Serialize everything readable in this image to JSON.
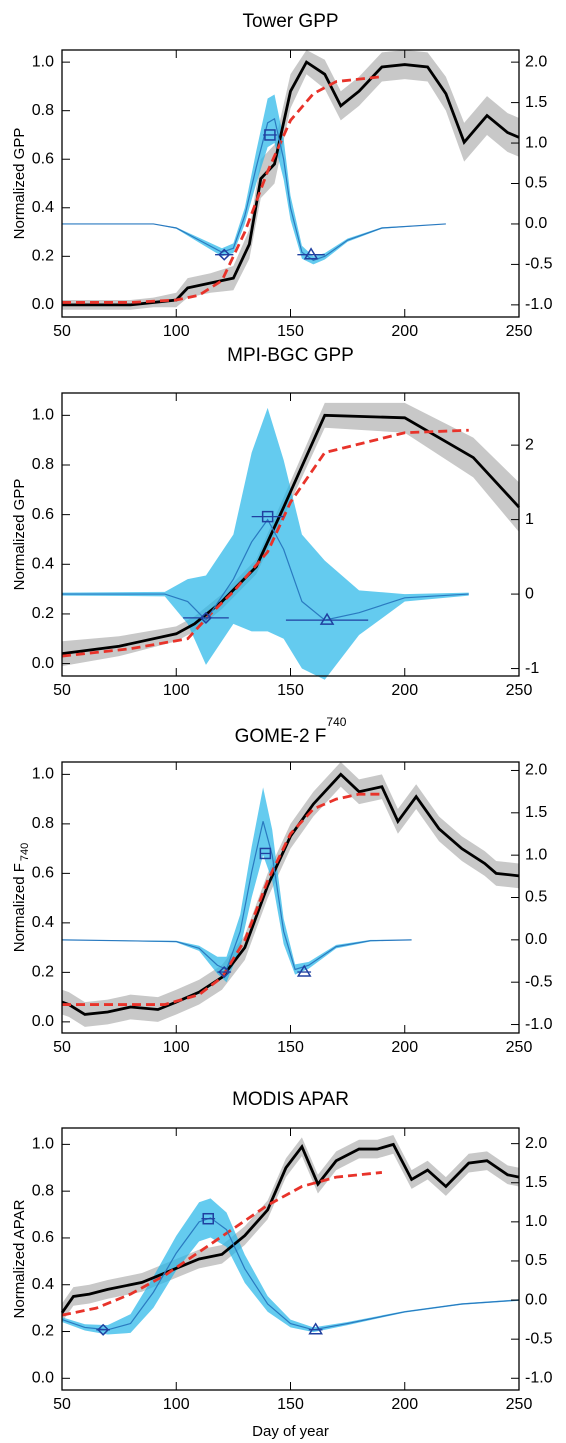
{
  "chart_data": [
    {
      "type": "line",
      "title": "Tower GPP",
      "ylabel": "Normalized GPP",
      "xlim": [
        50,
        250
      ],
      "xticks": [
        50,
        100,
        150,
        200,
        250
      ],
      "ylim": [
        -0.05,
        1.05
      ],
      "yticks": [
        {
          "value": 0,
          "label": "0.0"
        },
        0.2,
        0.4,
        0.6,
        0.8,
        {
          "value": 1,
          "label": "1.0"
        }
      ],
      "y2lim": [
        -1.15,
        2.15
      ],
      "y2ticks": [
        {
          "value": -1,
          "label": "-1.0"
        },
        -0.5,
        {
          "value": 0,
          "label": "0.0"
        },
        0.5,
        {
          "value": 1,
          "label": "1.0"
        },
        1.5,
        {
          "value": 2,
          "label": "2.0"
        }
      ],
      "series": [
        {
          "color": "#000000",
          "band_color": "#c8c8c8",
          "style": "solid",
          "x": [
            50,
            60,
            80,
            90,
            100,
            105,
            115,
            125,
            132,
            137,
            143,
            150,
            157,
            165,
            172,
            180,
            190,
            200,
            210,
            218,
            226,
            236,
            245,
            250
          ],
          "values": [
            0.0,
            0.0,
            0.0,
            0.01,
            0.02,
            0.07,
            0.09,
            0.11,
            0.25,
            0.52,
            0.58,
            0.88,
            1.0,
            0.95,
            0.82,
            0.88,
            0.98,
            0.99,
            0.98,
            0.87,
            0.67,
            0.78,
            0.71,
            0.69
          ],
          "errors": [
            0.02,
            0.02,
            0.02,
            0.02,
            0.03,
            0.04,
            0.04,
            0.05,
            0.06,
            0.08,
            0.08,
            0.07,
            0.05,
            0.06,
            0.06,
            0.06,
            0.06,
            0.06,
            0.06,
            0.07,
            0.08,
            0.08,
            0.08,
            0.08
          ]
        },
        {
          "color": "#e8332a",
          "style": "dashed",
          "x": [
            50,
            80,
            100,
            110,
            120,
            130,
            140,
            150,
            160,
            170,
            180,
            190
          ],
          "values": [
            0.01,
            0.01,
            0.02,
            0.04,
            0.1,
            0.3,
            0.55,
            0.76,
            0.87,
            0.92,
            0.93,
            0.94
          ]
        },
        {
          "color": "#2a7ac0",
          "band_color": "#22b5e8",
          "style": "thin",
          "axis": "y2",
          "x": [
            50,
            90,
            100,
            110,
            120,
            125,
            130,
            135,
            140,
            143,
            147,
            150,
            155,
            160,
            165,
            175,
            190,
            218
          ],
          "values": [
            0,
            0,
            -0.05,
            -0.2,
            -0.35,
            -0.3,
            0.1,
            0.7,
            1.25,
            1.3,
            0.8,
            0.2,
            -0.35,
            -0.45,
            -0.4,
            -0.2,
            -0.05,
            0
          ],
          "errors": [
            0,
            0,
            0.01,
            0.03,
            0.05,
            0.06,
            0.1,
            0.2,
            0.3,
            0.3,
            0.25,
            0.15,
            0.08,
            0.05,
            0.04,
            0.02,
            0.01,
            0
          ]
        }
      ],
      "markers": [
        {
          "shape": "diamond",
          "x": 121,
          "value": -0.38,
          "xerr": 4
        },
        {
          "shape": "square",
          "x": 141,
          "value": 1.1,
          "xerr": 3
        },
        {
          "shape": "triangle",
          "x": 159,
          "value": -0.38,
          "xerr": 6
        }
      ]
    },
    {
      "type": "line",
      "title": "MPI-BGC GPP",
      "ylabel": "Normalized GPP",
      "xlim": [
        50,
        250
      ],
      "xticks": [
        50,
        100,
        150,
        200,
        250
      ],
      "ylim": [
        -0.05,
        1.09
      ],
      "yticks": [
        {
          "value": 0,
          "label": "0.0"
        },
        0.2,
        0.4,
        0.6,
        0.8,
        {
          "value": 1,
          "label": "1.0"
        }
      ],
      "y2lim": [
        -1.1,
        2.7
      ],
      "y2ticks": [
        -1,
        0,
        1,
        2
      ],
      "series": [
        {
          "color": "#000000",
          "band_color": "#c8c8c8",
          "style": "solid",
          "x": [
            50,
            75,
            100,
            108,
            120,
            135,
            147,
            165,
            200,
            230,
            250
          ],
          "values": [
            0.04,
            0.07,
            0.12,
            0.16,
            0.25,
            0.39,
            0.63,
            1.0,
            0.99,
            0.83,
            0.63
          ],
          "errors": [
            0.05,
            0.04,
            0.03,
            0.03,
            0.03,
            0.03,
            0.04,
            0.05,
            0.06,
            0.08,
            0.1
          ]
        },
        {
          "color": "#e8332a",
          "style": "dashed",
          "x": [
            50,
            80,
            105,
            115,
            125,
            140,
            150,
            165,
            200,
            228
          ],
          "values": [
            0.03,
            0.06,
            0.1,
            0.2,
            0.29,
            0.45,
            0.65,
            0.85,
            0.93,
            0.94
          ]
        },
        {
          "color": "#2a7ac0",
          "band_color": "#22b5e8",
          "style": "thin",
          "axis": "y2",
          "x": [
            50,
            95,
            105,
            113,
            125,
            133,
            140,
            147,
            155,
            165,
            180,
            200,
            228
          ],
          "values": [
            0,
            0,
            -0.1,
            -0.35,
            0.2,
            0.7,
            1.0,
            0.6,
            -0.1,
            -0.35,
            -0.25,
            -0.05,
            0
          ],
          "errors": [
            0.02,
            0.03,
            0.3,
            0.6,
            0.6,
            1.2,
            1.5,
            1.2,
            0.9,
            0.8,
            0.3,
            0.05,
            0.02
          ]
        }
      ],
      "markers": [
        {
          "shape": "diamond",
          "x": 113,
          "value": -0.32,
          "xerr": 10
        },
        {
          "shape": "square",
          "x": 140,
          "value": 1.04,
          "xerr": 7
        },
        {
          "shape": "triangle",
          "x": 166,
          "value": -0.35,
          "xerr": 18
        }
      ]
    },
    {
      "type": "line",
      "title": "GOME-2 F",
      "title_subscript": "740",
      "ylabel": "Normalized F",
      "ylabel_subscript": "740",
      "xlim": [
        50,
        250
      ],
      "xticks": [
        50,
        100,
        150,
        200,
        250
      ],
      "ylim": [
        -0.045,
        1.05
      ],
      "yticks": [
        {
          "value": 0,
          "label": "0.0"
        },
        0.2,
        0.4,
        0.6,
        0.8,
        {
          "value": 1,
          "label": "1.0"
        }
      ],
      "y2lim": [
        -1.1,
        2.1
      ],
      "y2ticks": [
        {
          "value": -1,
          "label": "-1.0"
        },
        -0.5,
        {
          "value": 0,
          "label": "0.0"
        },
        0.5,
        {
          "value": 1,
          "label": "1.0"
        },
        1.5,
        {
          "value": 2,
          "label": "2.0"
        }
      ],
      "series": [
        {
          "color": "#000000",
          "band_color": "#c8c8c8",
          "style": "solid",
          "x": [
            50,
            53,
            60,
            70,
            80,
            92,
            100,
            110,
            120,
            130,
            140,
            150,
            160,
            172,
            180,
            190,
            197,
            205,
            215,
            225,
            235,
            240,
            250
          ],
          "values": [
            0.08,
            0.07,
            0.03,
            0.04,
            0.06,
            0.05,
            0.08,
            0.12,
            0.18,
            0.3,
            0.55,
            0.75,
            0.88,
            1.0,
            0.93,
            0.95,
            0.81,
            0.91,
            0.78,
            0.7,
            0.64,
            0.6,
            0.59
          ],
          "errors": [
            0.05,
            0.05,
            0.05,
            0.05,
            0.05,
            0.05,
            0.05,
            0.05,
            0.05,
            0.05,
            0.05,
            0.05,
            0.05,
            0.05,
            0.05,
            0.05,
            0.05,
            0.05,
            0.05,
            0.05,
            0.05,
            0.05,
            0.05
          ]
        },
        {
          "color": "#e8332a",
          "style": "dashed",
          "x": [
            50,
            60,
            80,
            95,
            110,
            120,
            130,
            140,
            150,
            160,
            170,
            180,
            190
          ],
          "values": [
            0.07,
            0.07,
            0.07,
            0.07,
            0.11,
            0.18,
            0.33,
            0.57,
            0.76,
            0.86,
            0.9,
            0.92,
            0.92
          ]
        },
        {
          "color": "#2a7ac0",
          "band_color": "#22b5e8",
          "style": "thin",
          "axis": "y2",
          "x": [
            50,
            100,
            110,
            118,
            122,
            128,
            133,
            138,
            142,
            147,
            152,
            158,
            170,
            185,
            203
          ],
          "values": [
            0,
            -0.02,
            -0.1,
            -0.3,
            -0.35,
            0.1,
            0.8,
            1.4,
            1.0,
            0.1,
            -0.35,
            -0.3,
            -0.08,
            -0.01,
            0
          ],
          "errors": [
            0,
            0.01,
            0.03,
            0.1,
            0.15,
            0.2,
            0.3,
            0.4,
            0.3,
            0.15,
            0.06,
            0.04,
            0.02,
            0.01,
            0
          ]
        }
      ],
      "markers": [
        {
          "shape": "diamond",
          "x": 121,
          "value": -0.38,
          "xerr": 3
        },
        {
          "shape": "square",
          "x": 139,
          "value": 1.02,
          "xerr": 2
        },
        {
          "shape": "triangle",
          "x": 156,
          "value": -0.38,
          "xerr": 3
        }
      ]
    },
    {
      "type": "line",
      "title": "MODIS APAR",
      "ylabel": "Normalized APAR",
      "xlabel": "Day of year",
      "xlim": [
        50,
        250
      ],
      "xticks": [
        50,
        100,
        150,
        200,
        250
      ],
      "ylim": [
        -0.05,
        1.07
      ],
      "yticks": [
        {
          "value": 0,
          "label": "0.0"
        },
        0.2,
        0.4,
        0.6,
        0.8,
        {
          "value": 1,
          "label": "1.0"
        }
      ],
      "y2lim": [
        -1.15,
        2.2
      ],
      "y2ticks": [
        {
          "value": -1,
          "label": "-1.0"
        },
        -0.5,
        {
          "value": 0,
          "label": "0.0"
        },
        0.5,
        {
          "value": 1,
          "label": "1.0"
        },
        1.5,
        {
          "value": 2,
          "label": "2.0"
        }
      ],
      "series": [
        {
          "color": "#000000",
          "band_color": "#c8c8c8",
          "style": "solid",
          "x": [
            50,
            55,
            62,
            70,
            85,
            100,
            110,
            120,
            130,
            140,
            148,
            155,
            162,
            170,
            180,
            188,
            195,
            203,
            210,
            218,
            228,
            236,
            245,
            250
          ],
          "values": [
            0.28,
            0.35,
            0.36,
            0.38,
            0.41,
            0.47,
            0.51,
            0.53,
            0.61,
            0.72,
            0.9,
            0.99,
            0.83,
            0.93,
            0.98,
            0.98,
            1.0,
            0.85,
            0.89,
            0.82,
            0.92,
            0.93,
            0.87,
            0.86
          ],
          "errors": [
            0.04,
            0.04,
            0.04,
            0.04,
            0.04,
            0.04,
            0.04,
            0.04,
            0.04,
            0.04,
            0.04,
            0.04,
            0.04,
            0.04,
            0.04,
            0.04,
            0.04,
            0.04,
            0.04,
            0.04,
            0.04,
            0.04,
            0.04,
            0.04
          ]
        },
        {
          "color": "#e8332a",
          "style": "dashed",
          "x": [
            50,
            65,
            80,
            95,
            110,
            125,
            140,
            155,
            170,
            190
          ],
          "values": [
            0.27,
            0.3,
            0.36,
            0.44,
            0.54,
            0.64,
            0.74,
            0.82,
            0.86,
            0.88
          ]
        },
        {
          "color": "#2a7ac0",
          "band_color": "#22b5e8",
          "style": "thin",
          "axis": "y2",
          "x": [
            50,
            60,
            70,
            80,
            90,
            100,
            110,
            115,
            122,
            130,
            140,
            150,
            160,
            175,
            200,
            225,
            250
          ],
          "values": [
            -0.25,
            -0.35,
            -0.38,
            -0.3,
            0.1,
            0.6,
            1.0,
            1.05,
            0.9,
            0.4,
            -0.05,
            -0.3,
            -0.38,
            -0.3,
            -0.15,
            -0.05,
            0
          ],
          "errors": [
            0.03,
            0.04,
            0.06,
            0.12,
            0.2,
            0.22,
            0.25,
            0.25,
            0.22,
            0.18,
            0.1,
            0.05,
            0.03,
            0.02,
            0.01,
            0.01,
            0.01
          ]
        }
      ],
      "markers": [
        {
          "shape": "diamond",
          "x": 68,
          "value": -0.38,
          "xerr": 3
        },
        {
          "shape": "square",
          "x": 114,
          "value": 1.04,
          "xerr": 3
        },
        {
          "shape": "triangle",
          "x": 161,
          "value": -0.38,
          "xerr": 3
        }
      ]
    }
  ]
}
